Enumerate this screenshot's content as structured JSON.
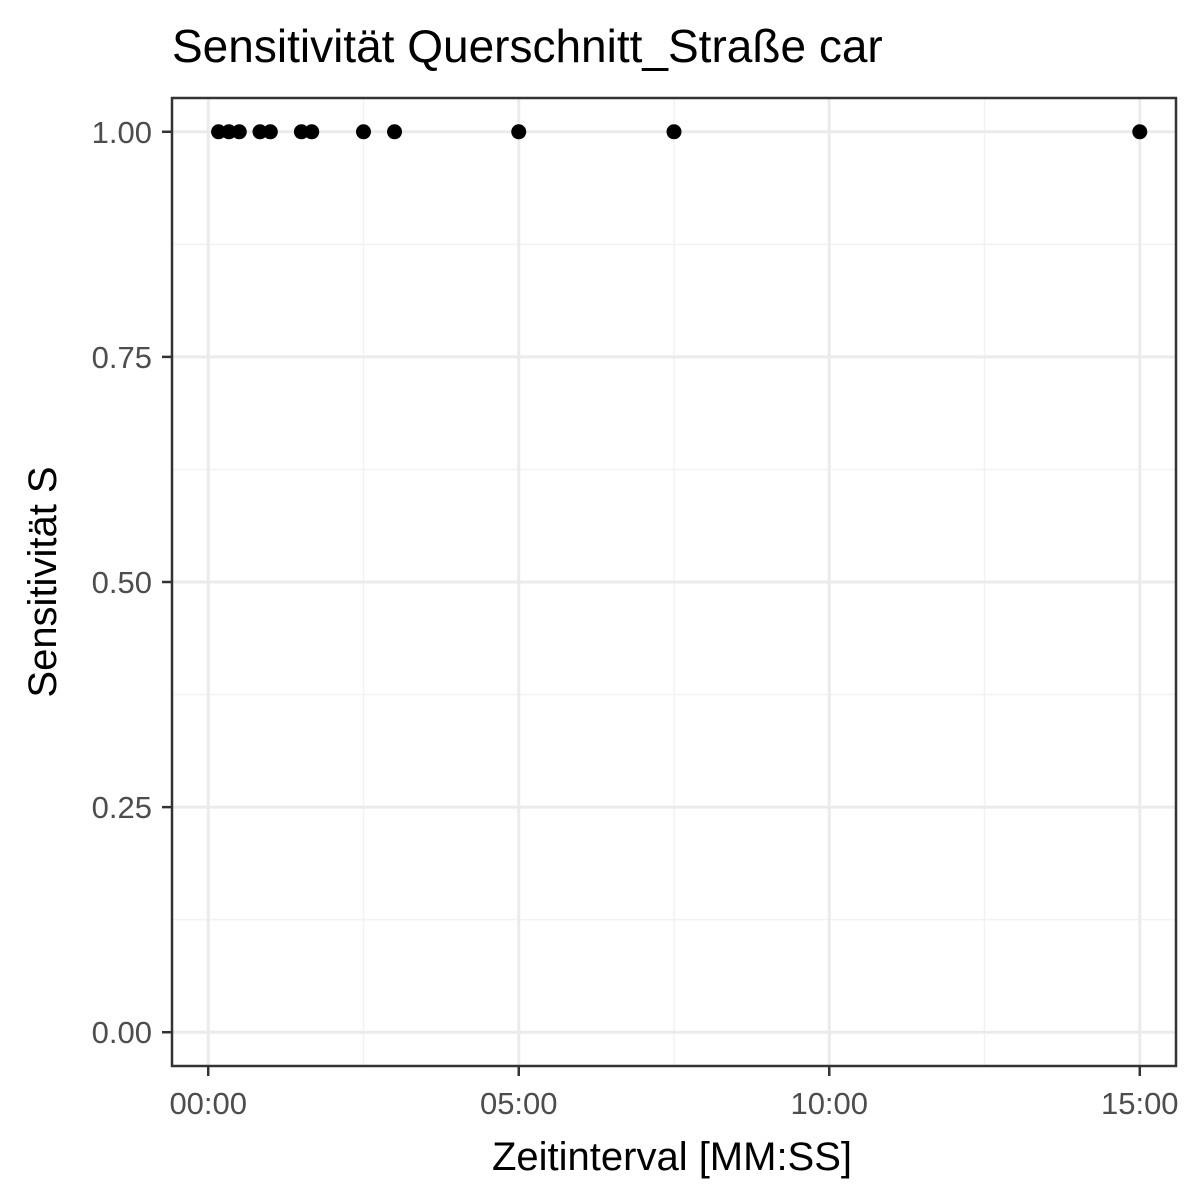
{
  "chart_data": {
    "type": "scatter",
    "title": "Sensitivität Querschnitt_Straße car",
    "xlabel": "Zeitinterval [MM:SS]",
    "ylabel": "Sensitivität S",
    "x_unit": "seconds",
    "xlim": [
      -35,
      935
    ],
    "ylim": [
      -0.0375,
      1.0375
    ],
    "x_ticks": [
      0,
      300,
      600,
      900
    ],
    "x_tick_labels": [
      "00:00",
      "05:00",
      "10:00",
      "15:00"
    ],
    "y_ticks": [
      0,
      0.25,
      0.5,
      0.75,
      1
    ],
    "y_tick_labels": [
      "0.00",
      "0.25",
      "0.50",
      "0.75",
      "1.00"
    ],
    "grid": true,
    "point_color": "#000000",
    "points": [
      {
        "x": 10,
        "y": 1.0
      },
      {
        "x": 20,
        "y": 1.0
      },
      {
        "x": 30,
        "y": 1.0
      },
      {
        "x": 50,
        "y": 1.0
      },
      {
        "x": 60,
        "y": 1.0
      },
      {
        "x": 90,
        "y": 1.0
      },
      {
        "x": 100,
        "y": 1.0
      },
      {
        "x": 150,
        "y": 1.0
      },
      {
        "x": 180,
        "y": 1.0
      },
      {
        "x": 300,
        "y": 1.0
      },
      {
        "x": 450,
        "y": 1.0
      },
      {
        "x": 900,
        "y": 1.0
      }
    ]
  }
}
